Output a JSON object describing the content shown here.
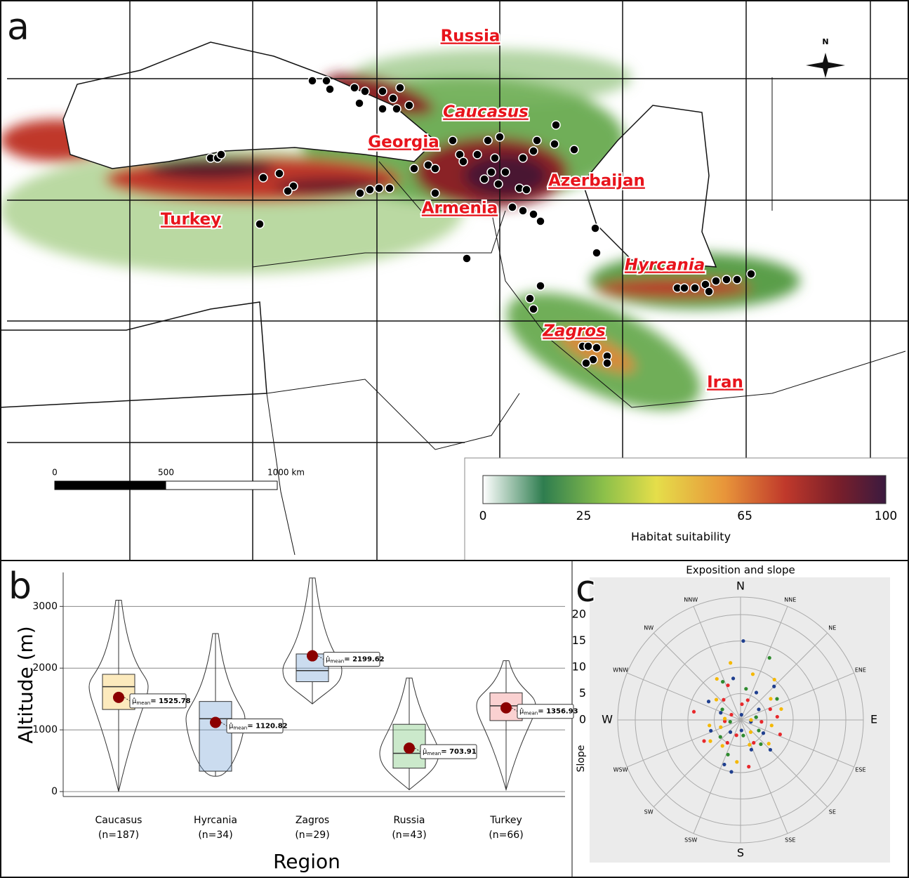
{
  "map": {
    "panel_label": "a",
    "north": "N",
    "labels": [
      "Russia",
      "Caucasus",
      "Georgia",
      "Azerbaijan",
      "Armenia",
      "Turkey",
      "Hyrcania",
      "Zagros",
      "Iran"
    ],
    "scale_bar": {
      "lim": [
        0,
        1000
      ],
      "ticks": [
        0,
        500,
        {
          "value": 1000,
          "label": "1000 km"
        }
      ]
    },
    "legend": {
      "title": "Habitat suitability",
      "lim": [
        0,
        100
      ],
      "ticks": [
        0,
        25,
        65,
        100
      ]
    }
  },
  "chart_data": [
    {
      "type": "box",
      "panel_label": "b",
      "x_label": "Region",
      "y_label": "Altitude (m)",
      "categories": [
        "Caucasus",
        "Hyrcania",
        "Zagros",
        "Russia",
        "Turkey"
      ],
      "sample_sizes": [
        "(n=187)",
        "(n=34)",
        "(n=29)",
        "(n=43)",
        "(n=66)"
      ],
      "colors": [
        "#f5c242",
        "#6b9bd1",
        "#6b9bd1",
        "#6abf69",
        "#f07c7c"
      ],
      "min": [
        0,
        250,
        1420,
        30,
        30
      ],
      "q1": [
        1330,
        330,
        1780,
        380,
        1150
      ],
      "median": [
        1700,
        1180,
        1960,
        620,
        1390
      ],
      "q3": [
        1900,
        1460,
        2230,
        1090,
        1600
      ],
      "max": [
        3100,
        2560,
        3460,
        1840,
        2120
      ],
      "mean": [
        1525.78,
        1120.82,
        2199.62,
        703.91,
        1356.93
      ],
      "mean_symbol": "μ̂",
      "mean_subscript": "mean",
      "mean_labels": [
        "= 1525.78",
        "= 1120.82",
        "= 2199.62",
        "= 703.91",
        "= 1356.93"
      ],
      "ylim": [
        -80,
        3550
      ],
      "yticks": [
        0,
        1000,
        2000,
        3000
      ],
      "grid": true
    },
    {
      "type": "polar_scatter",
      "panel_label": "c",
      "title": "Exposition and slope",
      "y_label": "Slope",
      "directions": [
        "N",
        "NNE",
        "NE",
        "ENE",
        "E",
        "ESE",
        "SE",
        "SSE",
        "S",
        "SSW",
        "SW",
        "WSW",
        "W",
        "WNW",
        "NW",
        "NNW"
      ],
      "xlim": [
        0,
        360
      ],
      "ylim": [
        0,
        20
      ],
      "yticks": [
        0,
        5,
        10,
        15,
        20
      ],
      "series": [
        {
          "color": "#1f3f8f",
          "x": [
            2,
            350,
            30,
            300,
            290,
            250,
            200,
            190,
            160,
            120,
            100,
            80,
            60,
            45,
            220,
            175,
            10,
            135
          ],
          "values": [
            15,
            8,
            6,
            7,
            4,
            6,
            9,
            10,
            6,
            5,
            2,
            3,
            4,
            9,
            3,
            2,
            1,
            8
          ]
        },
        {
          "color": "#e8282b",
          "x": [
            340,
            20,
            70,
            85,
            110,
            150,
            170,
            210,
            240,
            265,
            280,
            320,
            5,
            95,
            195,
            300
          ],
          "values": [
            7,
            4,
            6,
            7,
            8,
            5,
            9,
            5,
            8,
            3,
            9,
            5,
            3,
            4,
            3,
            2
          ]
        },
        {
          "color": "#f5b800",
          "x": [
            15,
            40,
            55,
            75,
            100,
            130,
            160,
            185,
            215,
            235,
            260,
            275,
            310,
            330,
            350,
            90,
            250,
            140
          ],
          "values": [
            9,
            10,
            7,
            8,
            6,
            7,
            5,
            8,
            6,
            7,
            6,
            3,
            6,
            9,
            11,
            2,
            4,
            3
          ]
        },
        {
          "color": "#2e8b2e",
          "x": [
            25,
            60,
            120,
            140,
            170,
            200,
            230,
            300,
            335,
            80,
            260,
            10
          ],
          "values": [
            13,
            8,
            4,
            6,
            3,
            7,
            5,
            4,
            8,
            3,
            2,
            6
          ]
        }
      ]
    }
  ]
}
